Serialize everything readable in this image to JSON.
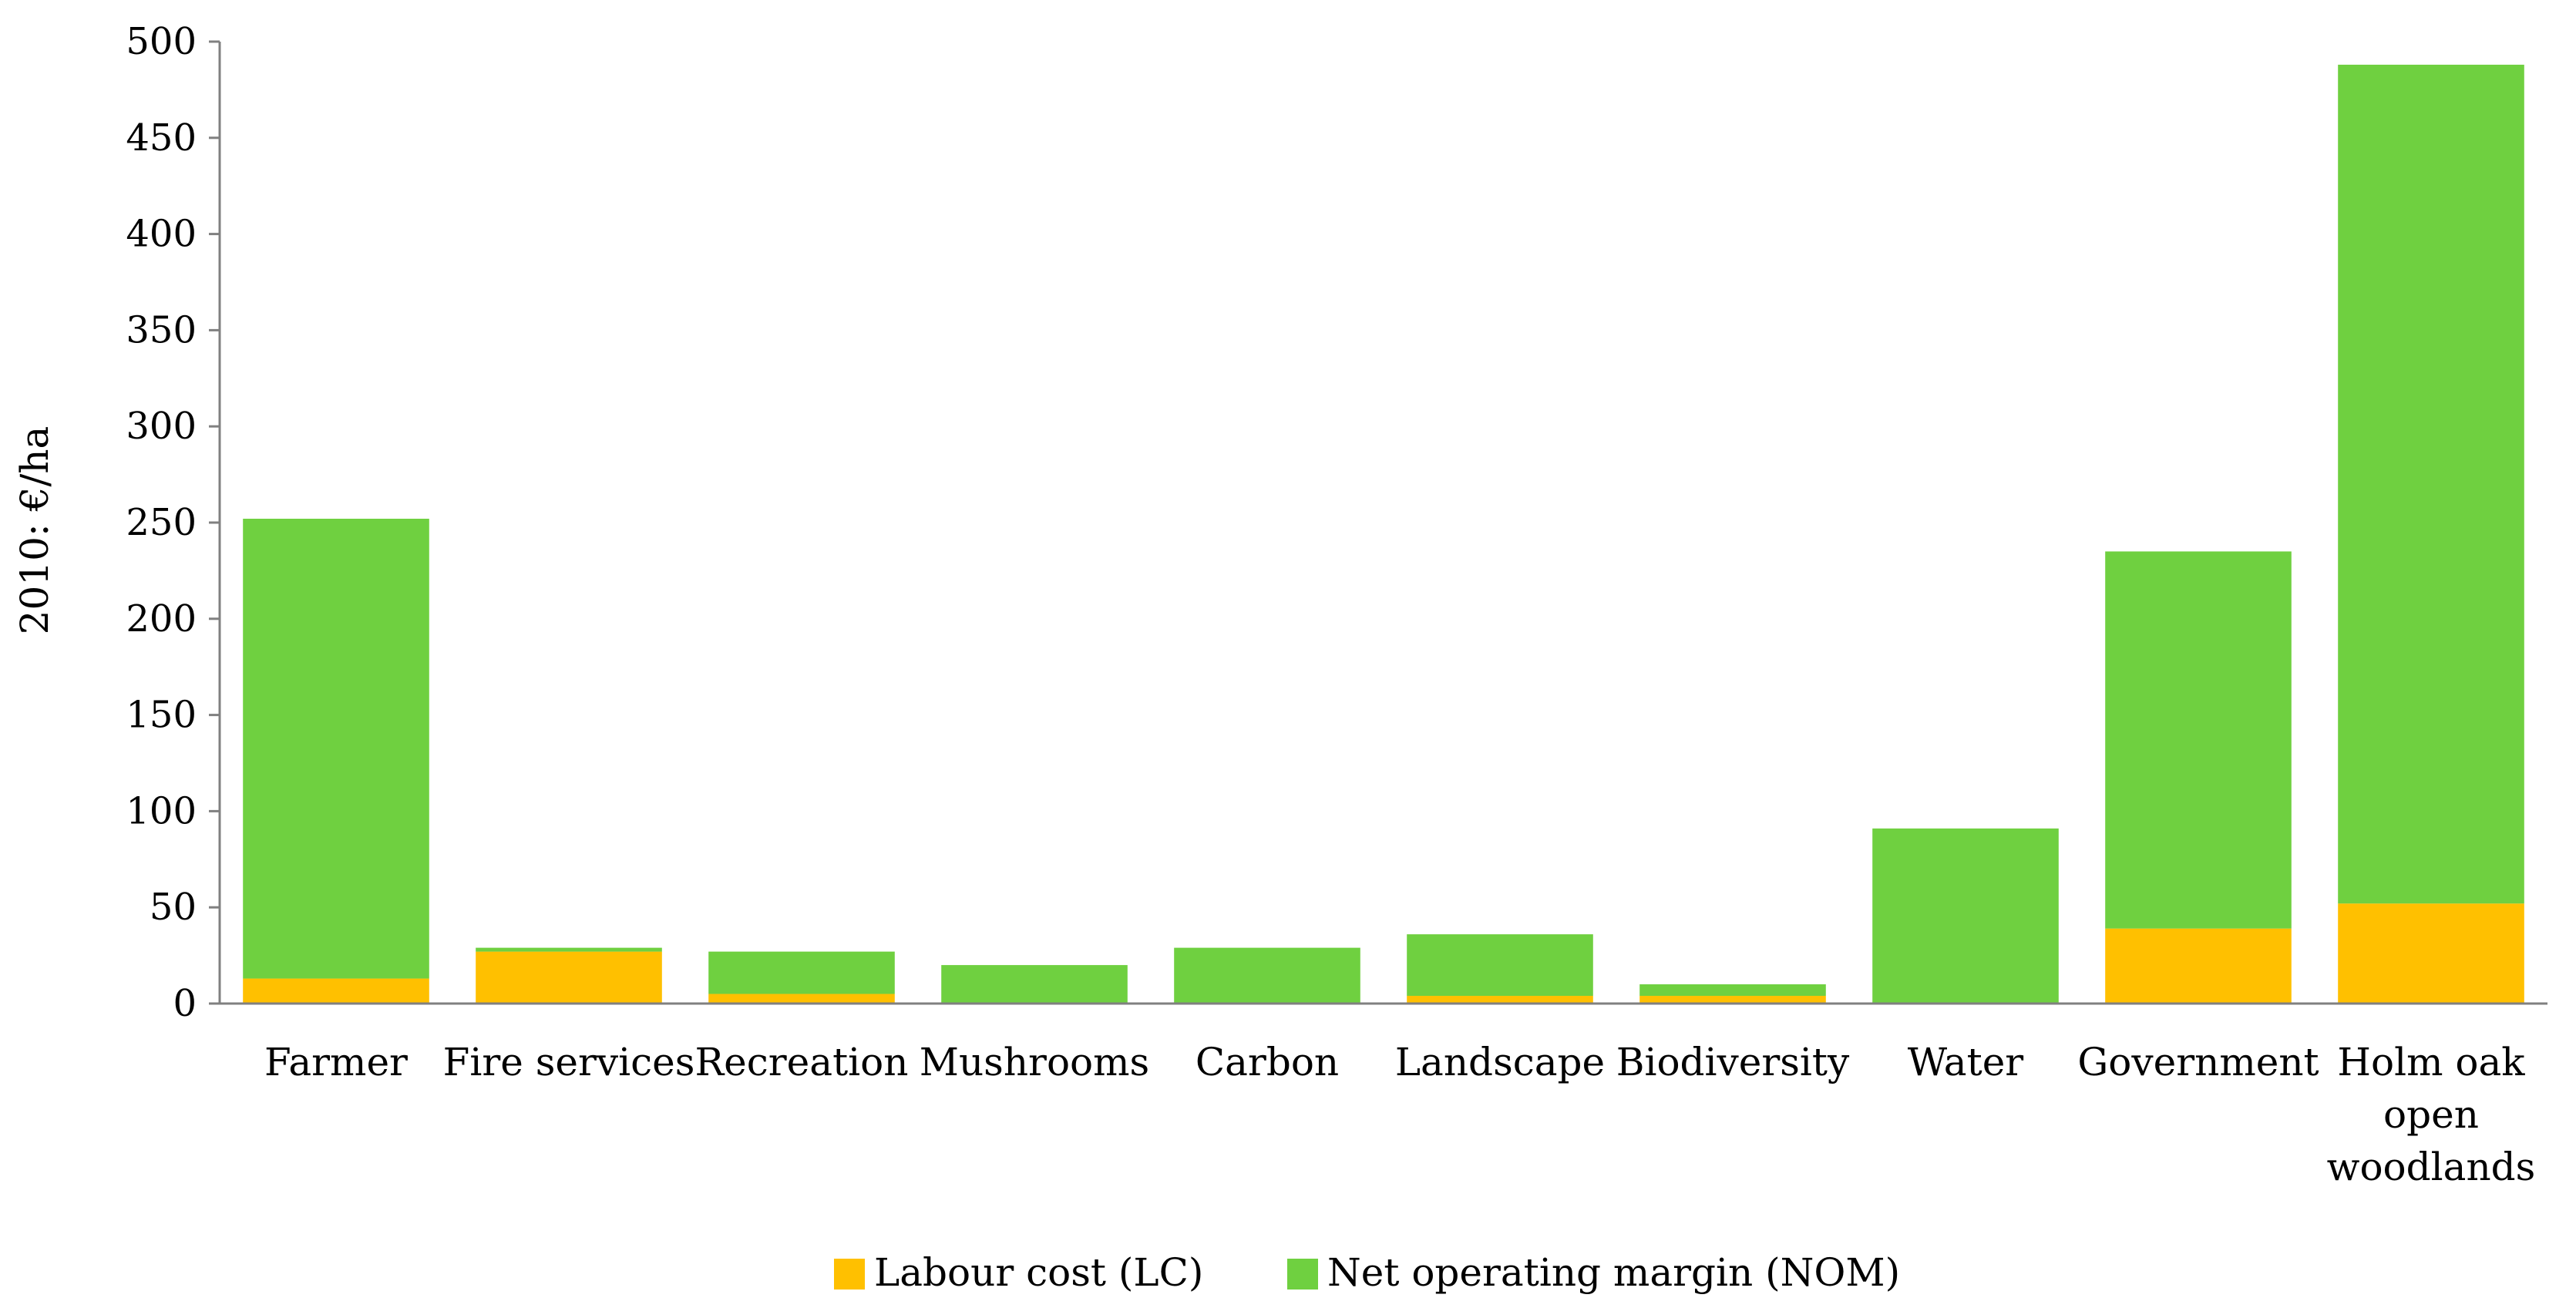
{
  "chart_data": {
    "type": "bar",
    "stacked": true,
    "title": "",
    "xlabel": "",
    "ylabel": "2010: €/ha",
    "ylim": [
      0,
      500
    ],
    "ytick_step": 50,
    "grid": false,
    "legend_position": "bottom",
    "categories": [
      [
        "Farmer"
      ],
      [
        "Fire services"
      ],
      [
        "Recreation"
      ],
      [
        "Mushrooms"
      ],
      [
        "Carbon"
      ],
      [
        "Landscape"
      ],
      [
        "Biodiversity"
      ],
      [
        "Water"
      ],
      [
        "Government"
      ],
      [
        "Holm oak",
        "open",
        "woodlands"
      ]
    ],
    "series": [
      {
        "name": "Labour cost (LC)",
        "color": "#FFC000",
        "values": [
          13,
          27,
          5,
          0,
          0,
          4,
          4,
          0,
          39,
          52
        ]
      },
      {
        "name": "Net operating margin (NOM)",
        "color": "#6FD040",
        "values": [
          239,
          2,
          22,
          20,
          29,
          32,
          6,
          91,
          196,
          436
        ]
      }
    ]
  }
}
